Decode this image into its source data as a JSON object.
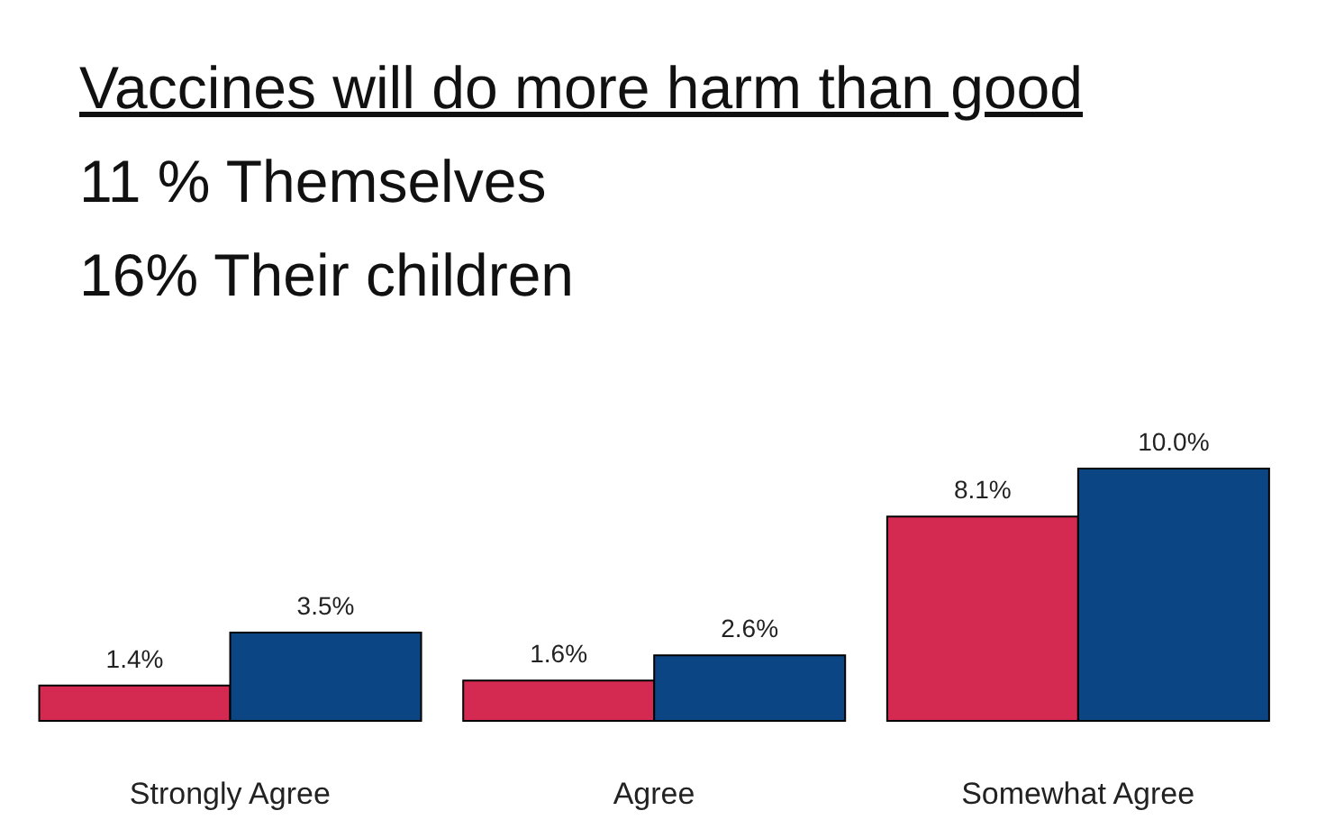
{
  "chart_data": {
    "type": "bar",
    "title": "Vaccines will do more harm than good",
    "subtitle": "11 % Themselves\n16% Their children",
    "categories": [
      "Strongly Agree",
      "Agree",
      "Somewhat Agree"
    ],
    "series": [
      {
        "color": "#d42a52",
        "values": [
          1.4,
          1.6,
          8.1
        ],
        "value_labels": [
          "1.4%",
          "1.6%",
          "8.1%"
        ]
      },
      {
        "color": "#0c4584",
        "values": [
          3.5,
          2.6,
          10.0
        ],
        "value_labels": [
          "3.5%",
          "2.6%",
          "10.0%"
        ]
      }
    ],
    "grid": false,
    "legend": false
  }
}
